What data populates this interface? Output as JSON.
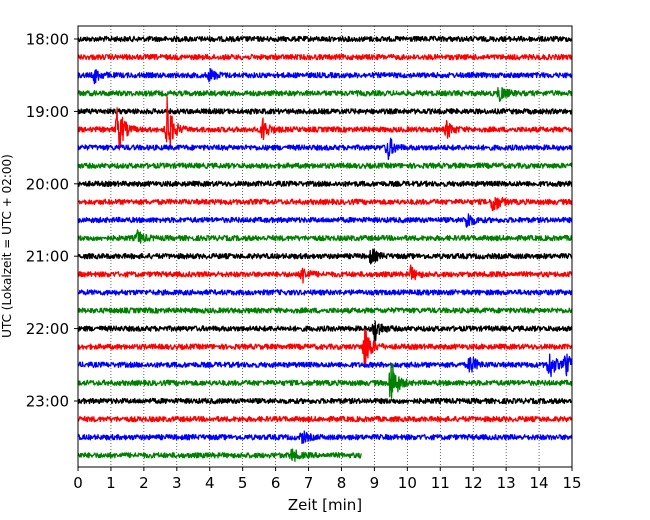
{
  "chart_data": {
    "type": "line",
    "title": "",
    "xlabel": "Zeit  [min]",
    "ylabel": "UTC (Lokalzeit = UTC + 02:00)",
    "xlim": [
      0,
      15
    ],
    "x_ticks": [
      "0",
      "1",
      "2",
      "3",
      "4",
      "5",
      "6",
      "7",
      "8",
      "9",
      "10",
      "11",
      "12",
      "13",
      "14",
      "15"
    ],
    "y_ticks": [
      "18:00",
      "19:00",
      "20:00",
      "21:00",
      "22:00",
      "23:00"
    ],
    "trace_interval_min": 15,
    "grid": "vertical dotted at each minute",
    "colors": [
      "#000000",
      "#ff0000",
      "#0000ff",
      "#008000"
    ],
    "series": [
      {
        "start": "18:00",
        "color": "#000000",
        "end_min": 15,
        "events": []
      },
      {
        "start": "18:15",
        "color": "#ff0000",
        "end_min": 15,
        "events": []
      },
      {
        "start": "18:30",
        "color": "#0000ff",
        "end_min": 15,
        "events": [
          {
            "t": 0.5,
            "amp": 1.0
          },
          {
            "t": 4.0,
            "amp": 0.9
          }
        ]
      },
      {
        "start": "18:45",
        "color": "#008000",
        "end_min": 15,
        "events": [
          {
            "t": 12.8,
            "amp": 1.2
          }
        ]
      },
      {
        "start": "19:00",
        "color": "#000000",
        "end_min": 15,
        "events": []
      },
      {
        "start": "19:15",
        "color": "#ff0000",
        "end_min": 15,
        "events": [
          {
            "t": 1.2,
            "amp": 4.0
          },
          {
            "t": 2.7,
            "amp": 4.5
          },
          {
            "t": 5.6,
            "amp": 1.8
          },
          {
            "t": 11.2,
            "amp": 1.2
          }
        ]
      },
      {
        "start": "19:30",
        "color": "#0000ff",
        "end_min": 15,
        "events": [
          {
            "t": 9.4,
            "amp": 1.8
          }
        ]
      },
      {
        "start": "19:45",
        "color": "#008000",
        "end_min": 15,
        "events": []
      },
      {
        "start": "20:00",
        "color": "#000000",
        "end_min": 15,
        "events": []
      },
      {
        "start": "20:15",
        "color": "#ff0000",
        "end_min": 15,
        "events": [
          {
            "t": 12.6,
            "amp": 1.8
          }
        ]
      },
      {
        "start": "20:30",
        "color": "#0000ff",
        "end_min": 15,
        "events": [
          {
            "t": 11.8,
            "amp": 1.3
          }
        ]
      },
      {
        "start": "20:45",
        "color": "#008000",
        "end_min": 15,
        "events": [
          {
            "t": 1.8,
            "amp": 1.0
          }
        ]
      },
      {
        "start": "21:00",
        "color": "#000000",
        "end_min": 15,
        "events": [
          {
            "t": 8.9,
            "amp": 1.1
          }
        ]
      },
      {
        "start": "21:15",
        "color": "#ff0000",
        "end_min": 15,
        "events": [
          {
            "t": 6.8,
            "amp": 1.2
          },
          {
            "t": 10.1,
            "amp": 1.0
          }
        ]
      },
      {
        "start": "21:30",
        "color": "#0000ff",
        "end_min": 15,
        "events": []
      },
      {
        "start": "21:45",
        "color": "#008000",
        "end_min": 15,
        "events": []
      },
      {
        "start": "22:00",
        "color": "#000000",
        "end_min": 15,
        "events": [
          {
            "t": 9.0,
            "amp": 2.0
          }
        ]
      },
      {
        "start": "22:15",
        "color": "#ff0000",
        "end_min": 15,
        "events": [
          {
            "t": 8.7,
            "amp": 3.5
          }
        ]
      },
      {
        "start": "22:30",
        "color": "#0000ff",
        "end_min": 15,
        "events": [
          {
            "t": 11.9,
            "amp": 1.5
          },
          {
            "t": 14.3,
            "amp": 2.3
          },
          {
            "t": 14.8,
            "amp": 1.8
          }
        ]
      },
      {
        "start": "22:45",
        "color": "#008000",
        "end_min": 15,
        "events": [
          {
            "t": 9.5,
            "amp": 4.0
          }
        ]
      },
      {
        "start": "23:00",
        "color": "#000000",
        "end_min": 15,
        "events": []
      },
      {
        "start": "23:15",
        "color": "#ff0000",
        "end_min": 15,
        "events": []
      },
      {
        "start": "23:30",
        "color": "#0000ff",
        "end_min": 15,
        "events": [
          {
            "t": 6.8,
            "amp": 0.8
          }
        ]
      },
      {
        "start": "23:45",
        "color": "#008000",
        "end_min": 8.6,
        "events": [
          {
            "t": 6.5,
            "amp": 0.9
          }
        ]
      }
    ]
  }
}
